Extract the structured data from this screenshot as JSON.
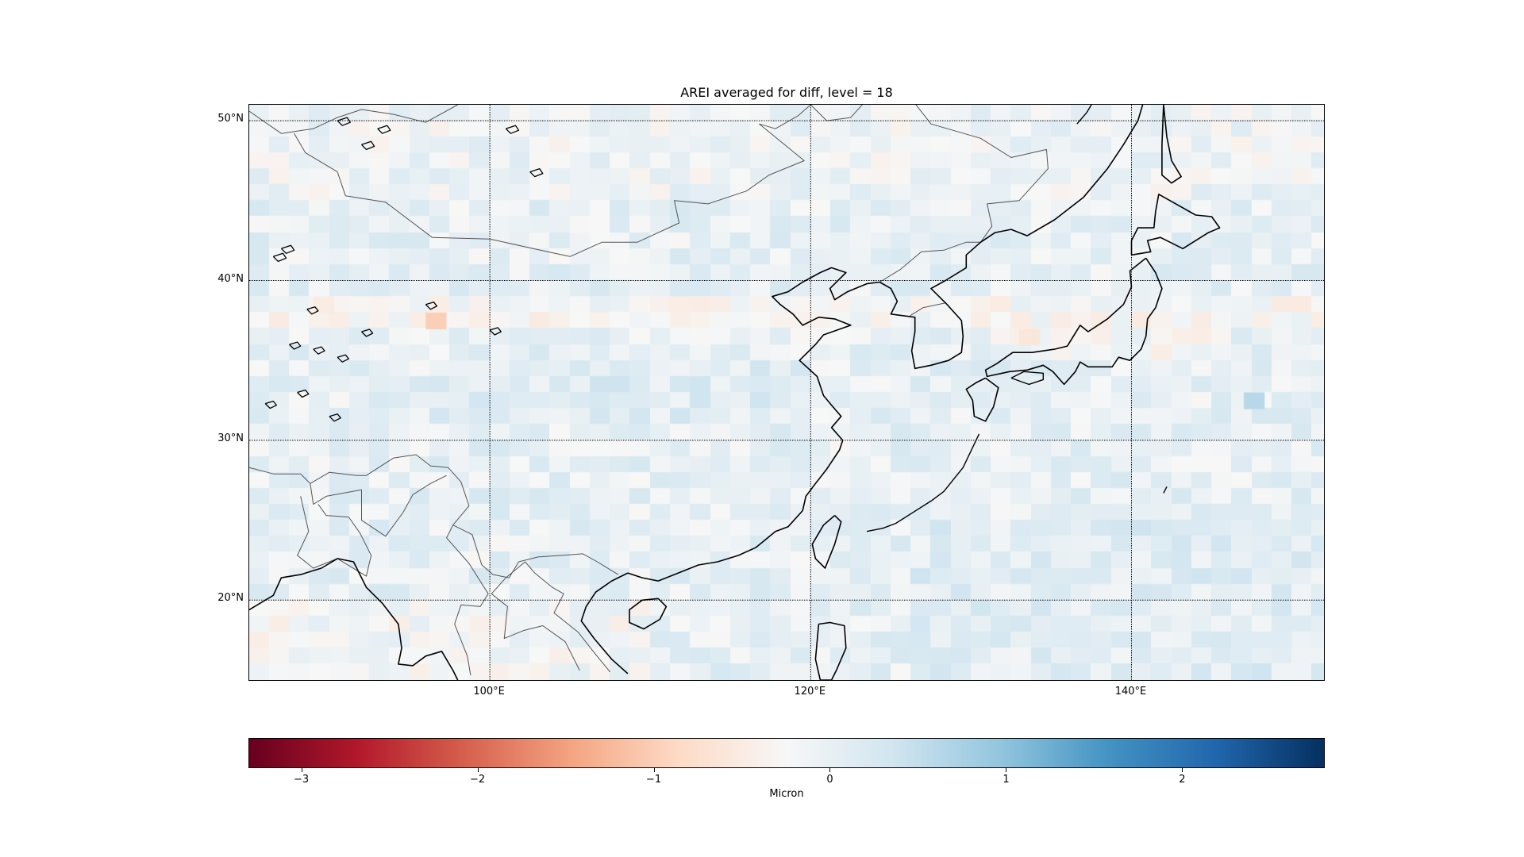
{
  "map": {
    "title": "AREI averaged for diff, level = 18",
    "extent": {
      "lon_min": 85,
      "lon_max": 152,
      "lat_min": 15,
      "lat_max": 51
    },
    "lat_labels": [
      {
        "value": 50,
        "text": "50°N"
      },
      {
        "value": 40,
        "text": "40°N"
      },
      {
        "value": 30,
        "text": "30°N"
      },
      {
        "value": 20,
        "text": "20°N"
      }
    ],
    "lon_labels": [
      {
        "value": 100,
        "text": "100°E"
      },
      {
        "value": 120,
        "text": "120°E"
      },
      {
        "value": 140,
        "text": "140°E"
      }
    ],
    "gridlines": "dotted"
  },
  "colorbar": {
    "label": "Micron",
    "colormap": "RdBu",
    "range": [
      -3.3,
      2.8
    ],
    "ticks": [
      {
        "value": -3,
        "text": "−3"
      },
      {
        "value": -2,
        "text": "−2"
      },
      {
        "value": -1,
        "text": "−1"
      },
      {
        "value": 0,
        "text": "0"
      },
      {
        "value": 1,
        "text": "1"
      },
      {
        "value": 2,
        "text": "2"
      }
    ]
  },
  "colors": {
    "coastline": "#000000",
    "border": "#555555",
    "frame": "#000000"
  }
}
